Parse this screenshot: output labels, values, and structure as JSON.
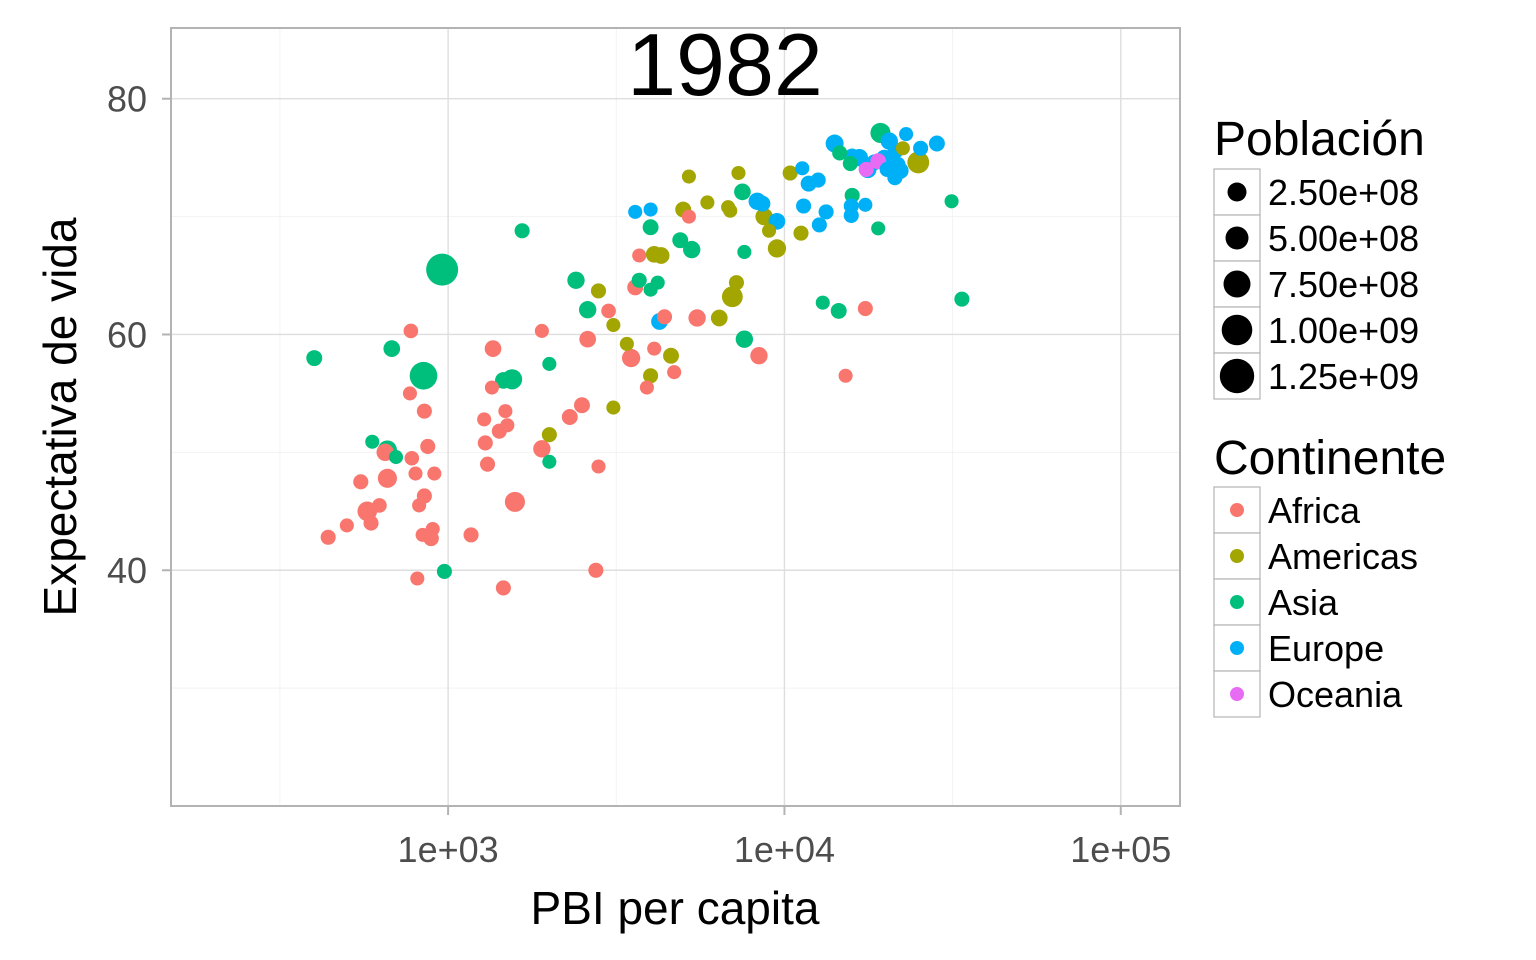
{
  "chart_data": {
    "type": "scatter",
    "title": "1982",
    "xlabel": "PBI per capita",
    "ylabel": "Expectativa de vida",
    "x_scale": "log10",
    "xlim": [
      150,
      150000
    ],
    "ylim": [
      20,
      86
    ],
    "x_ticks": [
      {
        "value": 1000,
        "label": "1e+03"
      },
      {
        "value": 10000,
        "label": "1e+04"
      },
      {
        "value": 100000,
        "label": "1e+05"
      }
    ],
    "y_ticks": [
      {
        "value": 40,
        "label": "40"
      },
      {
        "value": 60,
        "label": "60"
      },
      {
        "value": 80,
        "label": "80"
      }
    ],
    "x_minor": [
      316.2,
      3162.3,
      31622.8
    ],
    "y_minor": [
      30,
      50,
      70
    ],
    "grid": true,
    "legend_position": "right",
    "size_legend": {
      "title": "Población",
      "entries": [
        {
          "label": "2.50e+08",
          "value": 250000000
        },
        {
          "label": "5.00e+08",
          "value": 500000000
        },
        {
          "label": "7.50e+08",
          "value": 750000000
        },
        {
          "label": "1.00e+09",
          "value": 1000000000
        },
        {
          "label": "1.25e+09",
          "value": 1250000000
        }
      ]
    },
    "color_legend": {
      "title": "Continente",
      "entries": [
        {
          "label": "Africa",
          "color": "#F8766D"
        },
        {
          "label": "Americas",
          "color": "#A3A500"
        },
        {
          "label": "Asia",
          "color": "#00BF7D"
        },
        {
          "label": "Europe",
          "color": "#00B0F6"
        },
        {
          "label": "Oceania",
          "color": "#E76BF3"
        }
      ]
    },
    "series": [
      {
        "name": "Africa",
        "color": "#F8766D",
        "points": [
          [
            775,
            60.3,
            5
          ],
          [
            770,
            55,
            4
          ],
          [
            850,
            53.5,
            6
          ],
          [
            870,
            50.5,
            6
          ],
          [
            780,
            49.5,
            5
          ],
          [
            910,
            48.2,
            4
          ],
          [
            550,
            47.5,
            6
          ],
          [
            625,
            45.5,
            5
          ],
          [
            575,
            45,
            20
          ],
          [
            590,
            44,
            6
          ],
          [
            660,
            47.8,
            18
          ],
          [
            650,
            50,
            12
          ],
          [
            440,
            42.8,
            6
          ],
          [
            500,
            43.8,
            4
          ],
          [
            820,
            45.5,
            4
          ],
          [
            850,
            46.3,
            6
          ],
          [
            800,
            48.2,
            4
          ],
          [
            840,
            43,
            4
          ],
          [
            890,
            42.7,
            7
          ],
          [
            900,
            43.5,
            4
          ],
          [
            810,
            39.3,
            4
          ],
          [
            1170,
            43,
            6
          ],
          [
            1280,
            52.8,
            4
          ],
          [
            1290,
            50.8,
            6
          ],
          [
            1310,
            49,
            6
          ],
          [
            1350,
            55.5,
            4
          ],
          [
            1360,
            58.8,
            10
          ],
          [
            1420,
            51.8,
            6
          ],
          [
            1500,
            52.3,
            4
          ],
          [
            1480,
            53.5,
            4
          ],
          [
            1460,
            38.5,
            6
          ],
          [
            1580,
            45.8,
            22
          ],
          [
            1900,
            60.3,
            4
          ],
          [
            1900,
            50.3,
            12
          ],
          [
            2300,
            53,
            8
          ],
          [
            2500,
            54,
            8
          ],
          [
            2600,
            59.6,
            10
          ],
          [
            2800,
            48.8,
            4
          ],
          [
            2750,
            40,
            6
          ],
          [
            3000,
            62,
            5
          ],
          [
            3500,
            58,
            15
          ],
          [
            3600,
            64,
            8
          ],
          [
            3700,
            66.7,
            4
          ],
          [
            3900,
            55.5,
            4
          ],
          [
            4100,
            58.8,
            4
          ],
          [
            4400,
            61.5,
            6
          ],
          [
            4700,
            56.8,
            4
          ],
          [
            5500,
            61.4,
            12
          ],
          [
            8400,
            58.2,
            12
          ],
          [
            15200,
            56.5,
            4
          ],
          [
            17400,
            62.2,
            6
          ],
          [
            5200,
            70,
            4
          ]
        ]
      },
      {
        "name": "Americas",
        "color": "#A3A500",
        "points": [
          [
            2800,
            63.7,
            6
          ],
          [
            3100,
            60.8,
            4
          ],
          [
            3400,
            59.2,
            4
          ],
          [
            3100,
            53.8,
            4
          ],
          [
            2000,
            51.5,
            6
          ],
          [
            4000,
            56.5,
            6
          ],
          [
            4600,
            58.2,
            8
          ],
          [
            4100,
            66.8,
            10
          ],
          [
            4300,
            66.7,
            10
          ],
          [
            5000,
            70.6,
            8
          ],
          [
            5200,
            73.4,
            4
          ],
          [
            5900,
            71.2,
            4
          ],
          [
            6400,
            61.4,
            10
          ],
          [
            6800,
            70.8,
            4
          ],
          [
            6900,
            70.5,
            4
          ],
          [
            7000,
            63.2,
            25
          ],
          [
            7300,
            73.7,
            4
          ],
          [
            7200,
            64.4,
            6
          ],
          [
            8700,
            70,
            12
          ],
          [
            9000,
            68.8,
            4
          ],
          [
            9500,
            67.3,
            15
          ],
          [
            10400,
            73.7,
            6
          ],
          [
            11200,
            68.6,
            6
          ],
          [
            22500,
            75.8,
            4
          ],
          [
            25000,
            74.6,
            30
          ]
        ]
      },
      {
        "name": "Asia",
        "color": "#00BF7D",
        "points": [
          [
            960,
            65.5,
            100
          ],
          [
            845,
            56.5,
            65
          ],
          [
            400,
            58,
            8
          ],
          [
            680,
            58.8,
            10
          ],
          [
            595,
            50.9,
            4
          ],
          [
            660,
            50.2,
            18
          ],
          [
            700,
            49.6,
            4
          ],
          [
            1460,
            56.1,
            10
          ],
          [
            1550,
            56.2,
            22
          ],
          [
            975,
            39.9,
            6
          ],
          [
            1660,
            68.8,
            6
          ],
          [
            2000,
            57.5,
            4
          ],
          [
            2000,
            49.2,
            4
          ],
          [
            2400,
            64.6,
            12
          ],
          [
            2600,
            62.1,
            12
          ],
          [
            3700,
            64.6,
            6
          ],
          [
            4000,
            69.1,
            8
          ],
          [
            4000,
            63.8,
            4
          ],
          [
            4200,
            64.4,
            4
          ],
          [
            4900,
            68,
            8
          ],
          [
            5300,
            67.2,
            12
          ],
          [
            7500,
            72.1,
            10
          ],
          [
            7600,
            67,
            4
          ],
          [
            7600,
            59.6,
            12
          ],
          [
            13000,
            62.7,
            4
          ],
          [
            14500,
            62,
            8
          ],
          [
            14600,
            75.4,
            6
          ],
          [
            15700,
            74.5,
            6
          ],
          [
            15900,
            71.8,
            6
          ],
          [
            19000,
            69,
            4
          ],
          [
            19300,
            77.1,
            22
          ],
          [
            31400,
            71.3,
            4
          ],
          [
            33700,
            63,
            6
          ]
        ]
      },
      {
        "name": "Europe",
        "color": "#00B0F6",
        "points": [
          [
            3600,
            70.4,
            4
          ],
          [
            4000,
            70.6,
            4
          ],
          [
            4250,
            61.1,
            10
          ],
          [
            8300,
            71.3,
            12
          ],
          [
            8600,
            71.1,
            8
          ],
          [
            9500,
            69.6,
            10
          ],
          [
            11300,
            74.1,
            4
          ],
          [
            11400,
            70.9,
            6
          ],
          [
            11800,
            72.8,
            8
          ],
          [
            12600,
            73.1,
            6
          ],
          [
            12700,
            69.3,
            6
          ],
          [
            13300,
            70.4,
            6
          ],
          [
            14100,
            76.2,
            14
          ],
          [
            15800,
            70.9,
            6
          ],
          [
            15800,
            70.1,
            6
          ],
          [
            15900,
            75.1,
            8
          ],
          [
            16700,
            75,
            12
          ],
          [
            17400,
            71,
            4
          ],
          [
            17700,
            74,
            12
          ],
          [
            18500,
            74.6,
            8
          ],
          [
            19800,
            75,
            8
          ],
          [
            20200,
            74,
            6
          ],
          [
            20500,
            76.4,
            12
          ],
          [
            21300,
            73.3,
            6
          ],
          [
            21400,
            75.6,
            8
          ],
          [
            21700,
            74.4,
            8
          ],
          [
            22100,
            73.9,
            10
          ],
          [
            23000,
            77,
            4
          ],
          [
            25400,
            75.8,
            6
          ],
          [
            28400,
            76.2,
            8
          ],
          [
            20000,
            74.8,
            12
          ]
        ]
      },
      {
        "name": "Oceania",
        "color": "#E76BF3",
        "points": [
          [
            17500,
            74,
            6
          ],
          [
            19000,
            74.7,
            8
          ]
        ]
      }
    ]
  }
}
